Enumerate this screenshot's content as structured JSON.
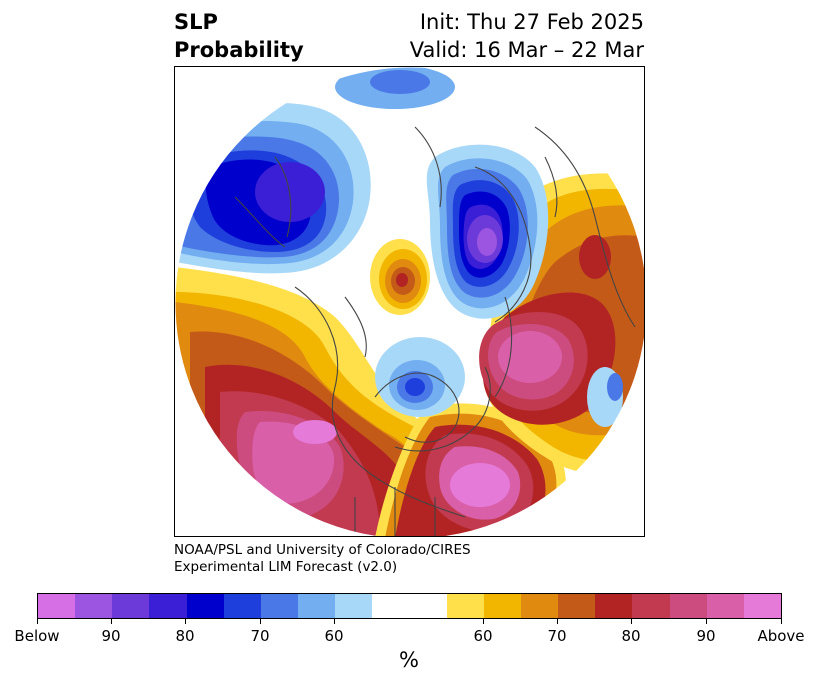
{
  "header": {
    "title_line1": "SLP",
    "title_line2": "Probability",
    "init": "Init: Thu 27 Feb 2025",
    "valid": "Valid: 16 Mar – 22 Mar"
  },
  "credit": {
    "line1": "NOAA/PSL and University of Colorado/CIRES",
    "line2": "Experimental LIM Forecast (v2.0)"
  },
  "colorbar": {
    "unit": "%",
    "ticks": [
      "Below",
      "90",
      "80",
      "70",
      "60",
      "60",
      "70",
      "80",
      "90",
      "Above"
    ],
    "colors": [
      "#d66fe6",
      "#9b55e0",
      "#6b3ad9",
      "#3a1fd6",
      "#0000cc",
      "#1f3fdc",
      "#4a78e6",
      "#72aef0",
      "#a8d8f8",
      "#ffffff",
      "#ffe04a",
      "#f2b600",
      "#e08a10",
      "#c45a18",
      "#b22424",
      "#c23a50",
      "#cc4c80",
      "#d960a8",
      "#e67ad8"
    ]
  },
  "map": {
    "projection": "north-polar-stereographic",
    "features": [
      {
        "name": "pacific-positive-anomaly",
        "category": "above",
        "level": "90"
      },
      {
        "name": "europe-positive-anomaly",
        "category": "above",
        "level": "80"
      },
      {
        "name": "eastern-us-positive-anomaly",
        "category": "above",
        "level": "Above"
      },
      {
        "name": "siberia-negative-anomaly",
        "category": "below",
        "level": "90"
      },
      {
        "name": "greenland-negative-anomaly",
        "category": "below",
        "level": "80"
      },
      {
        "name": "canada-negative-anomaly",
        "category": "below",
        "level": "70"
      },
      {
        "name": "arctic-positive-anomaly",
        "category": "above",
        "level": "70"
      }
    ]
  }
}
